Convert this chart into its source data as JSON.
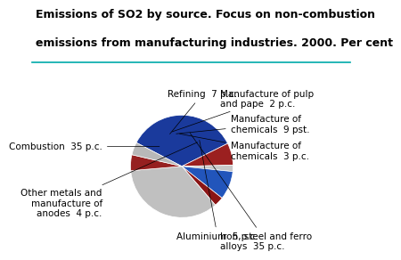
{
  "title_line1": "Emissions of SO2 by source. Focus on non-combustion",
  "title_line2": "emissions from manufacturing industries. 2000. Per cent",
  "slices": [
    {
      "label": "Combustion  35 p.c.",
      "value": 35,
      "color": "#1a3a9c"
    },
    {
      "label": "Refining  7 p.c.",
      "value": 7,
      "color": "#9b2020"
    },
    {
      "label": "Manufacture of pulp\nand pape  2 p.c.",
      "value": 2,
      "color": "#c8c8c8"
    },
    {
      "label": "Manufacture of\nchemicals  9 pst.",
      "value": 9,
      "color": "#2255bb"
    },
    {
      "label": "Manufacture of\nchemicals  3 p.c.",
      "value": 3,
      "color": "#8b1515"
    },
    {
      "label": "Iron, steel and ferro\nalloys  35 p.c.",
      "value": 35,
      "color": "#c0c0c0"
    },
    {
      "label": "Aluminium  5 p.c.",
      "value": 5,
      "color": "#962020"
    },
    {
      "label": "Other metals and\nmanufacture of\nanodes  4 p.c.",
      "value": 4,
      "color": "#b8b8b8"
    }
  ],
  "background_color": "#ffffff",
  "title_fontsize": 9,
  "label_fontsize": 7.5,
  "startangle": 152.5
}
